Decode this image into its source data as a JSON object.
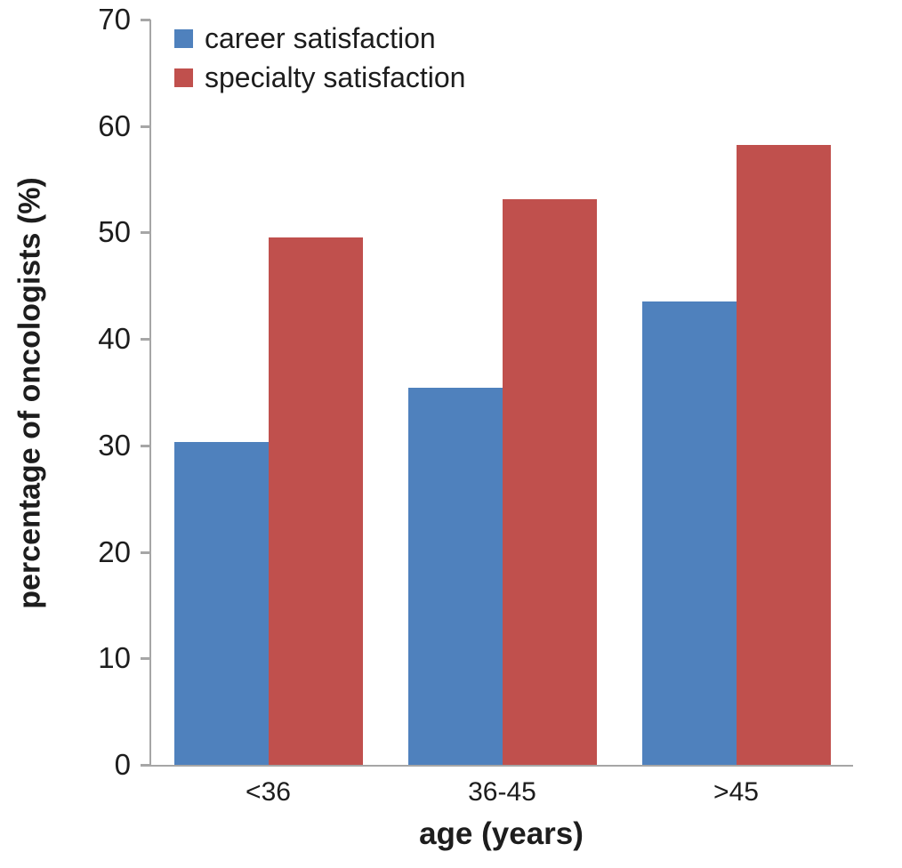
{
  "chart_data": {
    "type": "bar",
    "title": "",
    "categories": [
      "<36",
      "36-45",
      ">45"
    ],
    "series": [
      {
        "name": "career satisfaction",
        "color": "#4F81BD",
        "values": [
          30.3,
          35.4,
          43.5
        ]
      },
      {
        "name": "specialty satisfaction",
        "color": "#C0504D",
        "values": [
          49.5,
          53.1,
          58.2
        ]
      }
    ],
    "xlabel": "age (years)",
    "ylabel": "percentage of oncologists (%)",
    "ylim": [
      0,
      70
    ],
    "ytick_step": 10,
    "y_tick_labels": [
      "0",
      "10",
      "20",
      "30",
      "40",
      "50",
      "60",
      "70"
    ],
    "legend_position": "top-left",
    "grid": false,
    "axis_color": "#A6A6A6",
    "text_color": "#1D1D1D",
    "background_color": "#FFFFFF"
  }
}
